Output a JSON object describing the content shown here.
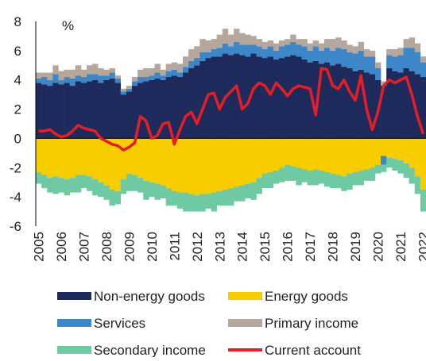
{
  "chart_data": {
    "type": "bar",
    "stacked": true,
    "ylabel": "%",
    "categories": [
      "2005",
      null,
      null,
      null,
      "2006",
      null,
      null,
      null,
      "2007",
      null,
      null,
      null,
      "2008",
      null,
      null,
      null,
      "2009",
      null,
      null,
      null,
      "2010",
      null,
      null,
      null,
      "2011",
      null,
      null,
      null,
      "2012",
      null,
      null,
      null,
      "2013",
      null,
      null,
      null,
      "2014",
      null,
      null,
      null,
      "2015",
      null,
      null,
      null,
      "2016",
      null,
      null,
      null,
      "2017",
      null,
      null,
      null,
      "2018",
      null,
      null,
      null,
      "2019",
      null,
      null,
      null,
      "2020",
      null,
      null,
      null,
      "2021",
      null,
      null,
      null,
      "2022"
    ],
    "ylim": [
      -6,
      8
    ],
    "yticks": [
      8,
      6,
      4,
      2,
      0,
      -2,
      -4,
      -6
    ],
    "series": [
      {
        "name": "Non-energy goods",
        "color": "#1f2a5c",
        "values": [
          3.8,
          3.7,
          3.6,
          3.8,
          3.7,
          3.8,
          3.6,
          3.9,
          3.8,
          3.9,
          4.0,
          3.8,
          4.0,
          4.1,
          3.8,
          3.0,
          3.2,
          3.6,
          3.8,
          3.9,
          4.0,
          4.1,
          4.0,
          4.2,
          4.3,
          4.2,
          4.5,
          4.8,
          5.0,
          5.3,
          5.5,
          5.6,
          5.6,
          5.8,
          5.7,
          5.8,
          5.7,
          5.6,
          5.8,
          5.6,
          5.5,
          5.6,
          5.4,
          5.5,
          5.6,
          5.7,
          5.6,
          5.4,
          5.2,
          5.3,
          5.1,
          5.2,
          5.0,
          5.1,
          4.9,
          4.8,
          4.6,
          4.7,
          4.5,
          4.4,
          4.0,
          3.6,
          4.8,
          4.6,
          4.5,
          4.8,
          4.6,
          4.4,
          4.2
        ]
      },
      {
        "name": "Energy goods",
        "color": "#f7cd00",
        "values": [
          -2.3,
          -2.5,
          -2.7,
          -2.6,
          -2.7,
          -2.8,
          -2.7,
          -2.5,
          -2.5,
          -2.6,
          -2.8,
          -3.0,
          -3.2,
          -3.5,
          -3.6,
          -2.8,
          -2.4,
          -2.5,
          -2.7,
          -2.9,
          -3.0,
          -3.1,
          -3.2,
          -3.4,
          -3.6,
          -3.7,
          -3.7,
          -3.8,
          -3.9,
          -3.8,
          -3.8,
          -3.7,
          -3.6,
          -3.5,
          -3.4,
          -3.3,
          -3.2,
          -3.1,
          -3.0,
          -2.7,
          -2.4,
          -2.3,
          -2.2,
          -2.0,
          -1.8,
          -1.9,
          -2.0,
          -2.1,
          -2.2,
          -2.1,
          -2.2,
          -2.3,
          -2.4,
          -2.5,
          -2.6,
          -2.4,
          -2.3,
          -2.2,
          -2.1,
          -2.0,
          -1.8,
          -1.2,
          -1.3,
          -1.4,
          -1.5,
          -1.7,
          -2.0,
          -2.6,
          -3.5
        ]
      },
      {
        "name": "Services",
        "color": "#3d87c9",
        "values": [
          0.3,
          0.5,
          0.4,
          0.6,
          0.3,
          0.4,
          0.5,
          0.4,
          0.4,
          0.5,
          0.4,
          0.5,
          0.3,
          0.4,
          0.3,
          0.2,
          0.2,
          0.3,
          0.4,
          0.3,
          0.3,
          0.4,
          0.3,
          0.4,
          0.4,
          0.3,
          0.4,
          0.5,
          0.5,
          0.6,
          0.4,
          0.5,
          0.6,
          0.7,
          0.6,
          0.8,
          0.7,
          0.8,
          0.6,
          0.7,
          0.6,
          0.7,
          0.6,
          0.8,
          0.8,
          0.9,
          0.8,
          0.9,
          0.8,
          1.0,
          0.9,
          1.0,
          1.0,
          1.1,
          1.2,
          1.1,
          1.2,
          1.3,
          1.1,
          1.2,
          0.8,
          -0.6,
          0.9,
          1.0,
          1.2,
          1.4,
          1.6,
          1.5,
          1.0
        ]
      },
      {
        "name": "Primary income",
        "color": "#b5a79c",
        "values": [
          0.4,
          0.3,
          0.5,
          0.6,
          0.6,
          0.5,
          0.6,
          0.7,
          0.5,
          0.6,
          0.7,
          0.5,
          0.4,
          0.3,
          0.2,
          0.2,
          0.2,
          0.3,
          0.5,
          0.6,
          0.5,
          0.6,
          0.4,
          0.5,
          0.5,
          0.6,
          0.7,
          0.8,
          0.8,
          0.9,
          0.8,
          0.7,
          0.9,
          1.0,
          0.8,
          0.9,
          0.8,
          0.7,
          0.6,
          0.5,
          0.5,
          0.4,
          0.5,
          0.4,
          0.4,
          0.5,
          0.4,
          0.5,
          0.5,
          0.4,
          0.5,
          0.6,
          0.8,
          0.7,
          0.6,
          0.5,
          0.5,
          0.6,
          0.5,
          0.4,
          0.4,
          0.3,
          0.4,
          0.5,
          0.5,
          0.6,
          0.7,
          0.6,
          0.4
        ]
      },
      {
        "name": "Secondary income",
        "color": "#6fcaa4",
        "values": [
          -0.8,
          -0.9,
          -1.0,
          -1.2,
          -1.0,
          -1.1,
          -1.0,
          -1.2,
          -0.9,
          -1.0,
          -1.1,
          -1.0,
          -1.0,
          -1.1,
          -0.9,
          -1.0,
          -1.2,
          -1.1,
          -1.0,
          -1.3,
          -1.0,
          -1.1,
          -0.9,
          -1.2,
          -1.0,
          -1.1,
          -1.3,
          -1.2,
          -1.1,
          -1.2,
          -1.0,
          -1.3,
          -1.0,
          -1.1,
          -1.2,
          -1.0,
          -1.1,
          -1.0,
          -1.2,
          -1.1,
          -1.0,
          -1.1,
          -0.9,
          -1.0,
          -1.1,
          -1.0,
          -1.2,
          -0.9,
          -1.0,
          -1.1,
          -0.9,
          -1.0,
          -1.0,
          -0.9,
          -1.0,
          -1.1,
          -0.9,
          -1.0,
          -0.8,
          -0.9,
          -0.6,
          -0.5,
          -0.7,
          -0.8,
          -0.9,
          -1.0,
          -1.1,
          -1.2,
          -1.5
        ]
      },
      {
        "name": "Current account",
        "color": "#e31e25",
        "type": "line",
        "values": [
          0.5,
          0.5,
          0.6,
          0.3,
          0.1,
          0.2,
          0.5,
          0.9,
          0.7,
          0.6,
          0.5,
          0.0,
          -0.2,
          -0.4,
          -0.5,
          -0.8,
          -0.6,
          -0.3,
          1.5,
          1.2,
          0.0,
          0.2,
          1.0,
          1.1,
          -0.4,
          0.6,
          1.5,
          1.8,
          1.0,
          2.0,
          3.0,
          3.1,
          2.0,
          2.8,
          3.2,
          3.6,
          2.0,
          2.4,
          3.4,
          3.8,
          3.6,
          3.0,
          3.8,
          3.4,
          2.9,
          3.4,
          3.6,
          3.5,
          3.4,
          1.6,
          4.8,
          4.7,
          3.6,
          3.4,
          4.0,
          3.2,
          2.6,
          4.3,
          2.0,
          0.6,
          1.8,
          3.6,
          4.0,
          3.8,
          4.0,
          4.2,
          3.0,
          1.5,
          0.3
        ]
      }
    ]
  }
}
